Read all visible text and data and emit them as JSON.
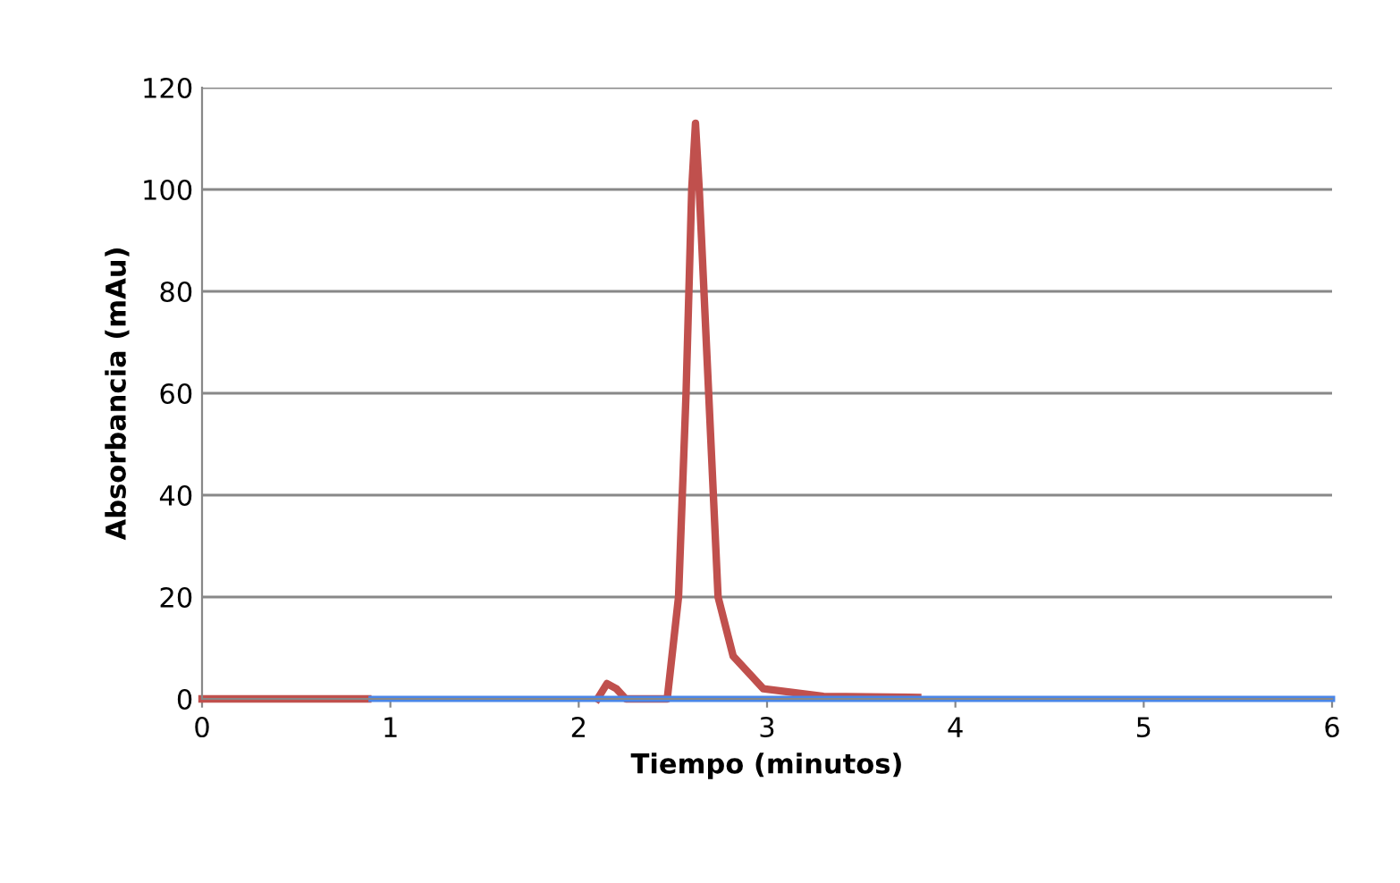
{
  "chart_data": {
    "type": "line",
    "xlabel": "Tiempo (minutos)",
    "ylabel": "Absorbancia (mAu)",
    "xlim": [
      0,
      6
    ],
    "xticks": [
      0,
      1,
      2,
      3,
      4,
      5,
      6
    ],
    "ylim": [
      0,
      120
    ],
    "yticks": [
      0,
      20,
      40,
      60,
      80,
      100,
      120
    ],
    "grid": "y",
    "legend": false,
    "marker": "none",
    "line_style": "solid",
    "series": [
      {
        "color": "#c0504d",
        "x": [
          0,
          0.88,
          null,
          2.1,
          2.15,
          2.2,
          2.25,
          2.47,
          2.53,
          2.57,
          2.6,
          2.62,
          2.64,
          2.69,
          2.74,
          2.82,
          2.98,
          3.3,
          3.8
        ],
        "values": [
          0,
          0,
          null,
          0,
          3,
          2,
          0,
          0,
          20,
          60,
          100,
          113,
          100,
          60,
          20,
          8.4,
          2,
          0.5,
          0.3
        ]
      },
      {
        "color": "#4a86e8",
        "x": [
          0.9,
          6
        ],
        "values": [
          0,
          0
        ]
      }
    ]
  }
}
